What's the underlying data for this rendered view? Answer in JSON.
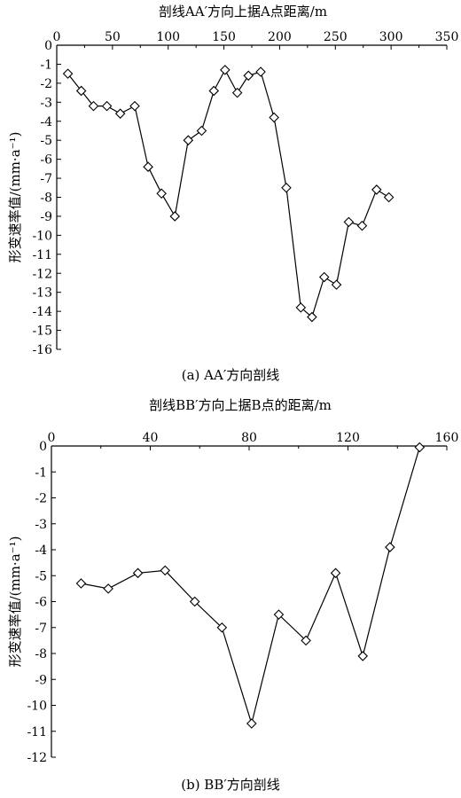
{
  "chart_data": [
    {
      "type": "line",
      "title": "",
      "xlabel": "剖线AA′方向上据A点距离/m",
      "ylabel": "形变速率值/(mm·a⁻¹)",
      "caption": "(a)  AA′方向剖线",
      "xlim": [
        0,
        350
      ],
      "ylim": [
        -16,
        0
      ],
      "xticks": [
        0,
        50,
        100,
        150,
        200,
        250,
        300,
        350
      ],
      "yticks": [
        0,
        -1,
        -2,
        -3,
        -4,
        -5,
        -6,
        -7,
        -8,
        -9,
        -10,
        -11,
        -12,
        -13,
        -14,
        -15,
        -16
      ],
      "x_axis_position": "top",
      "grid": false,
      "marker": "diamond",
      "series": [
        {
          "x": [
            10,
            22,
            33,
            45,
            57,
            70,
            82,
            94,
            106,
            118,
            130,
            141,
            151,
            162,
            172,
            183,
            195,
            206,
            219,
            229,
            240,
            251,
            262,
            274,
            287,
            298
          ],
          "y": [
            -1.5,
            -2.4,
            -3.2,
            -3.2,
            -3.6,
            -3.2,
            -6.4,
            -7.8,
            -9.0,
            -5.0,
            -4.5,
            -2.4,
            -1.3,
            -2.5,
            -1.6,
            -1.4,
            -3.8,
            -7.5,
            -13.8,
            -14.3,
            -12.2,
            -12.6,
            -9.3,
            -9.5,
            -7.6,
            -8.0
          ]
        }
      ]
    },
    {
      "type": "line",
      "title": "",
      "xlabel": "剖线BB′方向上据B点的距离/m",
      "ylabel": "形变速率值/(mm·a⁻¹)",
      "caption": "(b) BB′方向剖线",
      "xlim": [
        0,
        160
      ],
      "ylim": [
        -12,
        0
      ],
      "xticks": [
        0,
        40,
        80,
        120,
        160
      ],
      "yticks": [
        0,
        -1,
        -2,
        -3,
        -4,
        -5,
        -6,
        -7,
        -8,
        -9,
        -10,
        -11,
        -12
      ],
      "x_axis_position": "top",
      "grid": false,
      "marker": "diamond",
      "series": [
        {
          "x": [
            12,
            23,
            35,
            46,
            58,
            69,
            81,
            92,
            103,
            115,
            126,
            137,
            149
          ],
          "y": [
            -5.3,
            -5.5,
            -4.9,
            -4.8,
            -6.0,
            -7.0,
            -10.7,
            -6.5,
            -7.5,
            -4.9,
            -8.1,
            -3.9,
            -0.05
          ]
        }
      ]
    }
  ]
}
